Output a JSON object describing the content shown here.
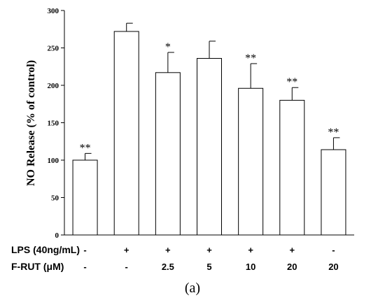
{
  "chart_data": {
    "type": "bar",
    "title": "",
    "xlabel": "",
    "ylabel": "NO Release (% of control)",
    "ylim": [
      0,
      300
    ],
    "yticks": [
      "0",
      "50",
      "100",
      "150",
      "200",
      "250",
      "300"
    ],
    "grid": false,
    "values": [
      100,
      272,
      217,
      236,
      196,
      180,
      114
    ],
    "errors": [
      9,
      11,
      27,
      23,
      33,
      17,
      16
    ],
    "significance": [
      "**",
      "",
      "*",
      "",
      "**",
      "**",
      "**"
    ],
    "conditions": {
      "rows": [
        {
          "label": "LPS (40ng/mL)",
          "values": [
            "-",
            "+",
            "+",
            "+",
            "+",
            "+",
            "-"
          ]
        },
        {
          "label": "F-RUT  (μM)",
          "values": [
            "-",
            "-",
            "2.5",
            "5",
            "10",
            "20",
            "20"
          ]
        }
      ]
    }
  },
  "caption": {
    "text": "(a)"
  }
}
